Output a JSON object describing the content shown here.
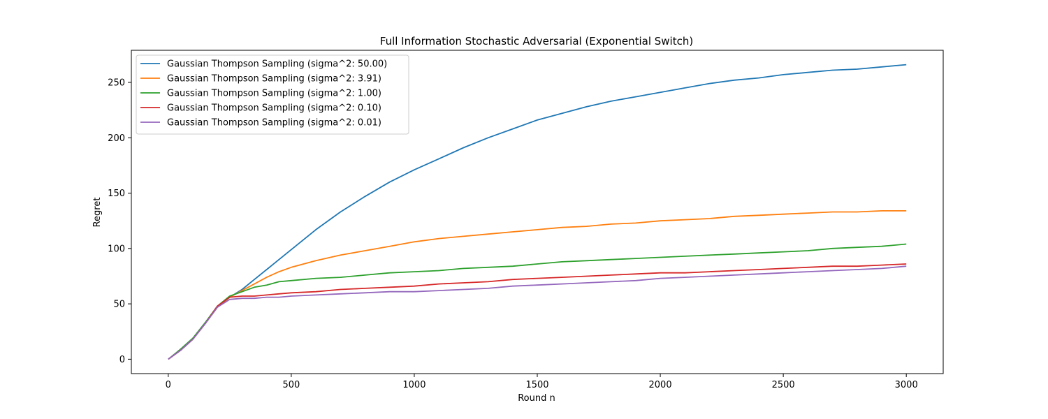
{
  "chart_data": {
    "type": "line",
    "title": "Full Information Stochastic Adversarial (Exponential Switch)",
    "xlabel": "Round n",
    "ylabel": "Regret",
    "xlim": [
      -150,
      3150
    ],
    "ylim": [
      -13,
      279
    ],
    "xticks": [
      0,
      500,
      1000,
      1500,
      2000,
      2500,
      3000
    ],
    "yticks": [
      0,
      50,
      100,
      150,
      200,
      250
    ],
    "grid": false,
    "legend_position": "top-left",
    "series": [
      {
        "name": "Gaussian Thompson Sampling (sigma^2: 50.00)",
        "color": "#1f77b4",
        "x": [
          0,
          50,
          100,
          150,
          200,
          250,
          300,
          350,
          400,
          450,
          500,
          600,
          700,
          800,
          900,
          1000,
          1100,
          1200,
          1300,
          1400,
          1500,
          1600,
          1700,
          1800,
          1900,
          2000,
          2100,
          2200,
          2300,
          2400,
          2500,
          2600,
          2700,
          2800,
          2900,
          3000
        ],
        "y": [
          0,
          8,
          18,
          32,
          47,
          56,
          63,
          72,
          81,
          90,
          99,
          117,
          133,
          147,
          160,
          171,
          181,
          191,
          200,
          208,
          216,
          222,
          228,
          233,
          237,
          241,
          245,
          249,
          252,
          254,
          257,
          259,
          261,
          262,
          264,
          266
        ]
      },
      {
        "name": "Gaussian Thompson Sampling (sigma^2: 3.91)",
        "color": "#ff7f0e",
        "x": [
          0,
          50,
          100,
          150,
          200,
          250,
          300,
          350,
          400,
          450,
          500,
          600,
          700,
          800,
          900,
          1000,
          1100,
          1200,
          1300,
          1400,
          1500,
          1600,
          1700,
          1800,
          1900,
          2000,
          2100,
          2200,
          2300,
          2400,
          2500,
          2600,
          2700,
          2800,
          2900,
          3000
        ],
        "y": [
          0,
          8,
          18,
          32,
          47,
          56,
          62,
          68,
          74,
          79,
          83,
          89,
          94,
          98,
          102,
          106,
          109,
          111,
          113,
          115,
          117,
          119,
          120,
          122,
          123,
          125,
          126,
          127,
          129,
          130,
          131,
          132,
          133,
          133,
          134,
          134
        ]
      },
      {
        "name": "Gaussian Thompson Sampling (sigma^2: 1.00)",
        "color": "#2ca02c",
        "x": [
          0,
          50,
          100,
          150,
          200,
          250,
          300,
          350,
          400,
          450,
          500,
          600,
          700,
          800,
          900,
          1000,
          1100,
          1200,
          1300,
          1400,
          1500,
          1600,
          1700,
          1800,
          1900,
          2000,
          2100,
          2200,
          2300,
          2400,
          2500,
          2600,
          2700,
          2800,
          2900,
          3000
        ],
        "y": [
          0,
          9,
          19,
          33,
          48,
          57,
          61,
          65,
          67,
          70,
          71,
          73,
          74,
          76,
          78,
          79,
          80,
          82,
          83,
          84,
          86,
          88,
          89,
          90,
          91,
          92,
          93,
          94,
          95,
          96,
          97,
          98,
          100,
          101,
          102,
          104
        ]
      },
      {
        "name": "Gaussian Thompson Sampling (sigma^2: 0.10)",
        "color": "#d62728",
        "x": [
          0,
          50,
          100,
          150,
          200,
          250,
          300,
          350,
          400,
          450,
          500,
          600,
          700,
          800,
          900,
          1000,
          1100,
          1200,
          1300,
          1400,
          1500,
          1600,
          1700,
          1800,
          1900,
          2000,
          2100,
          2200,
          2300,
          2400,
          2500,
          2600,
          2700,
          2800,
          2900,
          3000
        ],
        "y": [
          0,
          8,
          18,
          32,
          48,
          56,
          57,
          57,
          58,
          59,
          60,
          61,
          63,
          64,
          65,
          66,
          68,
          69,
          70,
          72,
          73,
          74,
          75,
          76,
          77,
          78,
          78,
          79,
          80,
          81,
          82,
          83,
          84,
          84,
          85,
          86
        ]
      },
      {
        "name": "Gaussian Thompson Sampling (sigma^2: 0.01)",
        "color": "#9467bd",
        "x": [
          0,
          50,
          100,
          150,
          200,
          250,
          300,
          350,
          400,
          450,
          500,
          600,
          700,
          800,
          900,
          1000,
          1100,
          1200,
          1300,
          1400,
          1500,
          1600,
          1700,
          1800,
          1900,
          2000,
          2100,
          2200,
          2300,
          2400,
          2500,
          2600,
          2700,
          2800,
          2900,
          3000
        ],
        "y": [
          0,
          8,
          18,
          32,
          47,
          54,
          55,
          55,
          56,
          56,
          57,
          58,
          59,
          60,
          61,
          61,
          62,
          63,
          64,
          66,
          67,
          68,
          69,
          70,
          71,
          73,
          74,
          75,
          76,
          77,
          78,
          79,
          80,
          81,
          82,
          84
        ]
      }
    ]
  }
}
